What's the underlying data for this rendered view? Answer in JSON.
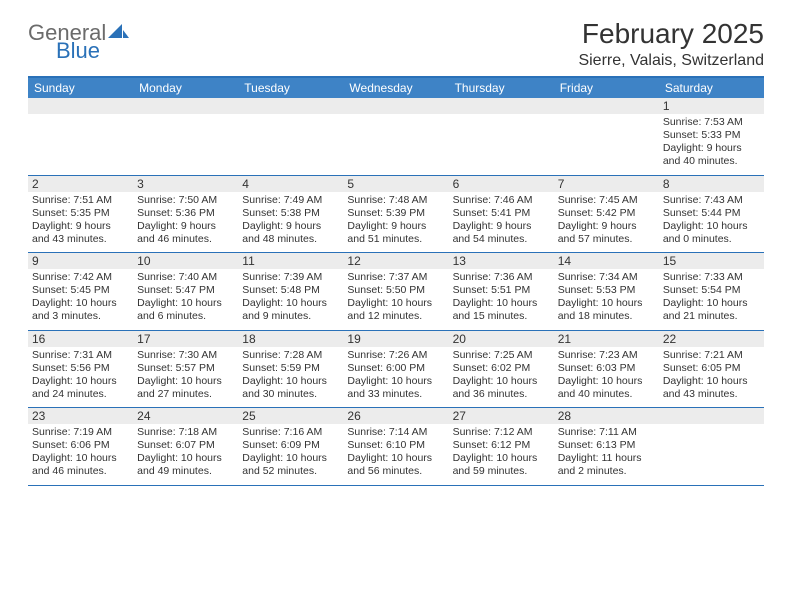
{
  "logo": {
    "word1": "General",
    "word2": "Blue"
  },
  "title": "February 2025",
  "location": "Sierre, Valais, Switzerland",
  "colors": {
    "brand_blue": "#2a71b8",
    "header_blue": "#3e83c6",
    "row_grey": "#ececec",
    "text": "#333333",
    "logo_grey": "#6b6b6b"
  },
  "weekdays": [
    "Sunday",
    "Monday",
    "Tuesday",
    "Wednesday",
    "Thursday",
    "Friday",
    "Saturday"
  ],
  "weeks": [
    [
      {
        "n": "",
        "sr": "",
        "ss": "",
        "dl": ""
      },
      {
        "n": "",
        "sr": "",
        "ss": "",
        "dl": ""
      },
      {
        "n": "",
        "sr": "",
        "ss": "",
        "dl": ""
      },
      {
        "n": "",
        "sr": "",
        "ss": "",
        "dl": ""
      },
      {
        "n": "",
        "sr": "",
        "ss": "",
        "dl": ""
      },
      {
        "n": "",
        "sr": "",
        "ss": "",
        "dl": ""
      },
      {
        "n": "1",
        "sr": "Sunrise: 7:53 AM",
        "ss": "Sunset: 5:33 PM",
        "dl": "Daylight: 9 hours and 40 minutes."
      }
    ],
    [
      {
        "n": "2",
        "sr": "Sunrise: 7:51 AM",
        "ss": "Sunset: 5:35 PM",
        "dl": "Daylight: 9 hours and 43 minutes."
      },
      {
        "n": "3",
        "sr": "Sunrise: 7:50 AM",
        "ss": "Sunset: 5:36 PM",
        "dl": "Daylight: 9 hours and 46 minutes."
      },
      {
        "n": "4",
        "sr": "Sunrise: 7:49 AM",
        "ss": "Sunset: 5:38 PM",
        "dl": "Daylight: 9 hours and 48 minutes."
      },
      {
        "n": "5",
        "sr": "Sunrise: 7:48 AM",
        "ss": "Sunset: 5:39 PM",
        "dl": "Daylight: 9 hours and 51 minutes."
      },
      {
        "n": "6",
        "sr": "Sunrise: 7:46 AM",
        "ss": "Sunset: 5:41 PM",
        "dl": "Daylight: 9 hours and 54 minutes."
      },
      {
        "n": "7",
        "sr": "Sunrise: 7:45 AM",
        "ss": "Sunset: 5:42 PM",
        "dl": "Daylight: 9 hours and 57 minutes."
      },
      {
        "n": "8",
        "sr": "Sunrise: 7:43 AM",
        "ss": "Sunset: 5:44 PM",
        "dl": "Daylight: 10 hours and 0 minutes."
      }
    ],
    [
      {
        "n": "9",
        "sr": "Sunrise: 7:42 AM",
        "ss": "Sunset: 5:45 PM",
        "dl": "Daylight: 10 hours and 3 minutes."
      },
      {
        "n": "10",
        "sr": "Sunrise: 7:40 AM",
        "ss": "Sunset: 5:47 PM",
        "dl": "Daylight: 10 hours and 6 minutes."
      },
      {
        "n": "11",
        "sr": "Sunrise: 7:39 AM",
        "ss": "Sunset: 5:48 PM",
        "dl": "Daylight: 10 hours and 9 minutes."
      },
      {
        "n": "12",
        "sr": "Sunrise: 7:37 AM",
        "ss": "Sunset: 5:50 PM",
        "dl": "Daylight: 10 hours and 12 minutes."
      },
      {
        "n": "13",
        "sr": "Sunrise: 7:36 AM",
        "ss": "Sunset: 5:51 PM",
        "dl": "Daylight: 10 hours and 15 minutes."
      },
      {
        "n": "14",
        "sr": "Sunrise: 7:34 AM",
        "ss": "Sunset: 5:53 PM",
        "dl": "Daylight: 10 hours and 18 minutes."
      },
      {
        "n": "15",
        "sr": "Sunrise: 7:33 AM",
        "ss": "Sunset: 5:54 PM",
        "dl": "Daylight: 10 hours and 21 minutes."
      }
    ],
    [
      {
        "n": "16",
        "sr": "Sunrise: 7:31 AM",
        "ss": "Sunset: 5:56 PM",
        "dl": "Daylight: 10 hours and 24 minutes."
      },
      {
        "n": "17",
        "sr": "Sunrise: 7:30 AM",
        "ss": "Sunset: 5:57 PM",
        "dl": "Daylight: 10 hours and 27 minutes."
      },
      {
        "n": "18",
        "sr": "Sunrise: 7:28 AM",
        "ss": "Sunset: 5:59 PM",
        "dl": "Daylight: 10 hours and 30 minutes."
      },
      {
        "n": "19",
        "sr": "Sunrise: 7:26 AM",
        "ss": "Sunset: 6:00 PM",
        "dl": "Daylight: 10 hours and 33 minutes."
      },
      {
        "n": "20",
        "sr": "Sunrise: 7:25 AM",
        "ss": "Sunset: 6:02 PM",
        "dl": "Daylight: 10 hours and 36 minutes."
      },
      {
        "n": "21",
        "sr": "Sunrise: 7:23 AM",
        "ss": "Sunset: 6:03 PM",
        "dl": "Daylight: 10 hours and 40 minutes."
      },
      {
        "n": "22",
        "sr": "Sunrise: 7:21 AM",
        "ss": "Sunset: 6:05 PM",
        "dl": "Daylight: 10 hours and 43 minutes."
      }
    ],
    [
      {
        "n": "23",
        "sr": "Sunrise: 7:19 AM",
        "ss": "Sunset: 6:06 PM",
        "dl": "Daylight: 10 hours and 46 minutes."
      },
      {
        "n": "24",
        "sr": "Sunrise: 7:18 AM",
        "ss": "Sunset: 6:07 PM",
        "dl": "Daylight: 10 hours and 49 minutes."
      },
      {
        "n": "25",
        "sr": "Sunrise: 7:16 AM",
        "ss": "Sunset: 6:09 PM",
        "dl": "Daylight: 10 hours and 52 minutes."
      },
      {
        "n": "26",
        "sr": "Sunrise: 7:14 AM",
        "ss": "Sunset: 6:10 PM",
        "dl": "Daylight: 10 hours and 56 minutes."
      },
      {
        "n": "27",
        "sr": "Sunrise: 7:12 AM",
        "ss": "Sunset: 6:12 PM",
        "dl": "Daylight: 10 hours and 59 minutes."
      },
      {
        "n": "28",
        "sr": "Sunrise: 7:11 AM",
        "ss": "Sunset: 6:13 PM",
        "dl": "Daylight: 11 hours and 2 minutes."
      },
      {
        "n": "",
        "sr": "",
        "ss": "",
        "dl": ""
      }
    ]
  ]
}
